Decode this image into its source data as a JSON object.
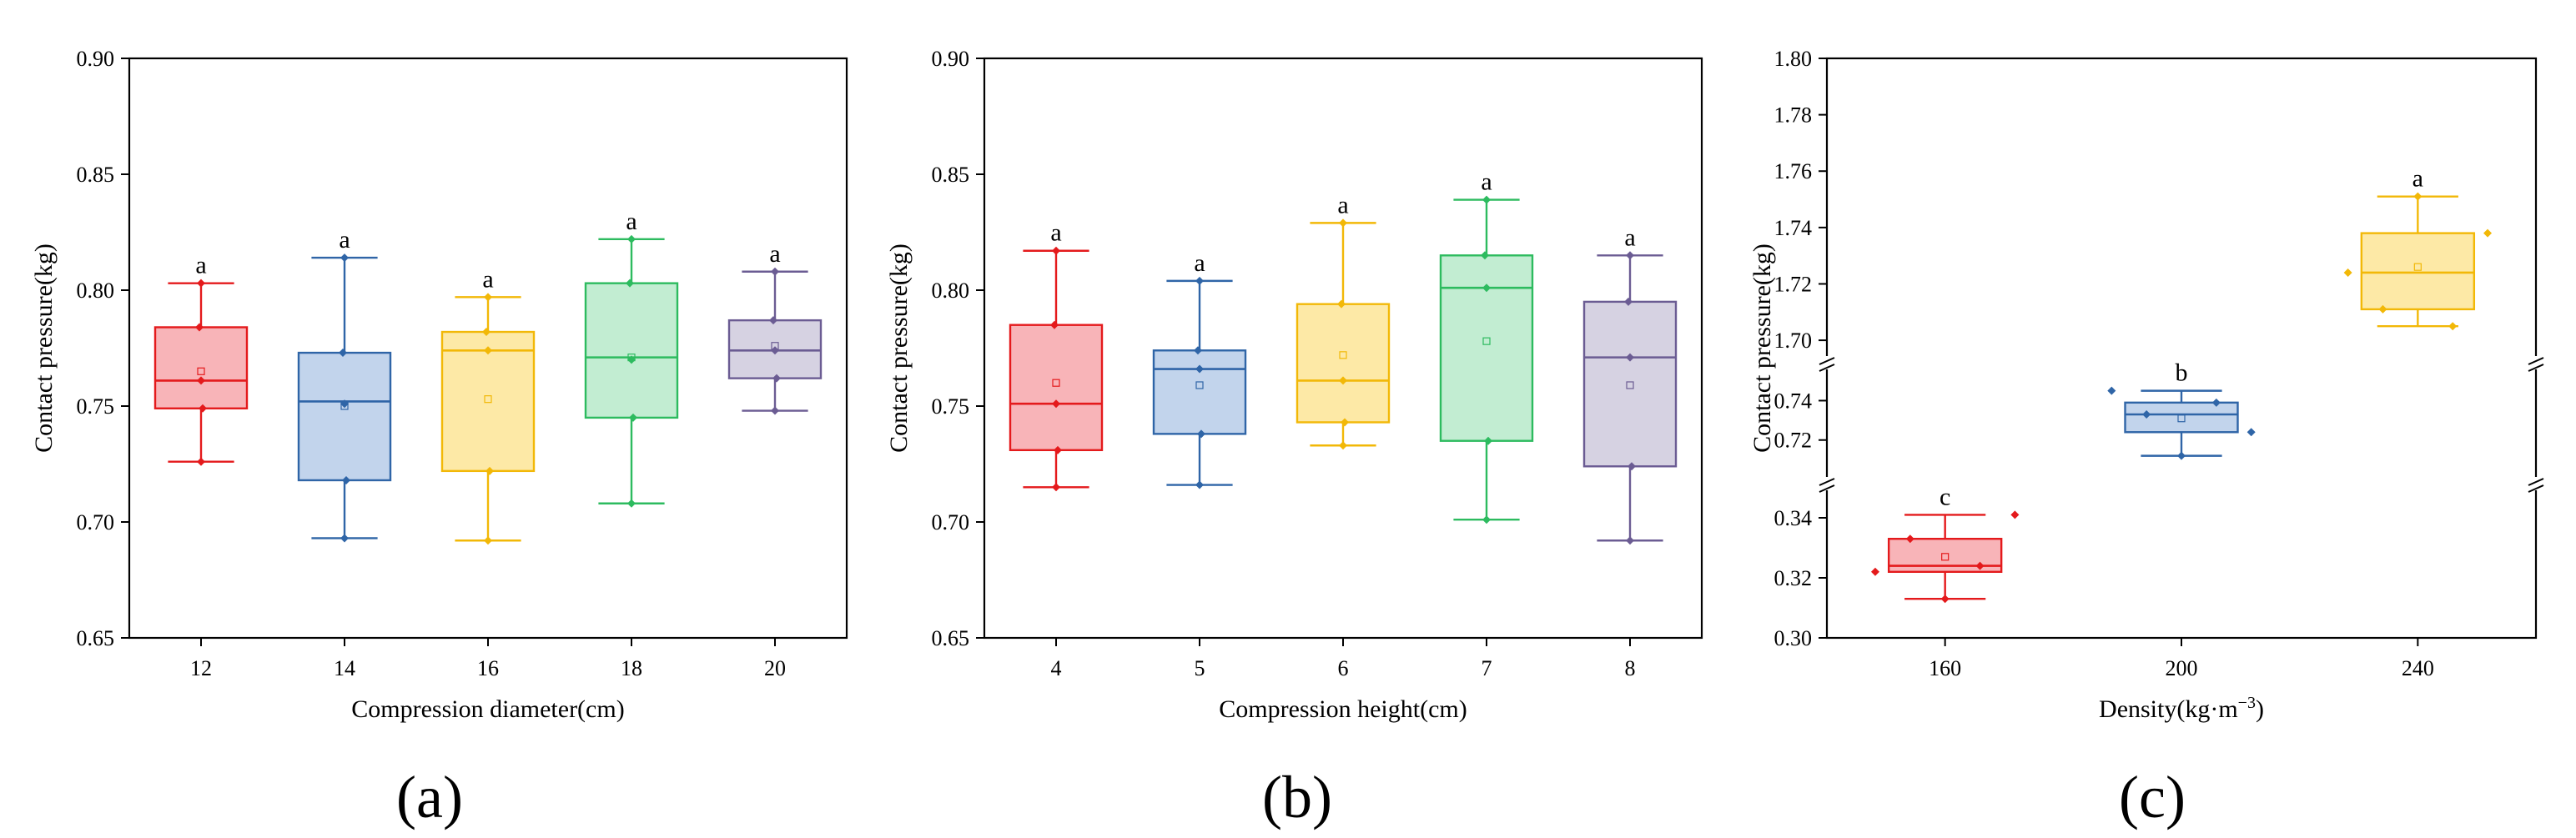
{
  "chart_data": [
    {
      "type": "box",
      "panel_label": "(a)",
      "xlabel": "Compression diameter(cm)",
      "ylabel": "Contact pressure(kg)",
      "ylim": [
        0.65,
        0.9
      ],
      "yticks": [
        "0.65",
        "0.70",
        "0.75",
        "0.80",
        "0.85",
        "0.90"
      ],
      "categories": [
        "12",
        "14",
        "16",
        "18",
        "20"
      ],
      "boxes": [
        {
          "q1": 0.749,
          "median": 0.761,
          "q3": 0.784,
          "whisker_low": 0.726,
          "whisker_high": 0.803,
          "mean": 0.765,
          "points": [
            0.726,
            0.749,
            0.761,
            0.784,
            0.803
          ],
          "letter": "a",
          "color": "#e41a1c",
          "fill": "#f8b4b8"
        },
        {
          "q1": 0.718,
          "median": 0.752,
          "q3": 0.773,
          "whisker_low": 0.693,
          "whisker_high": 0.814,
          "mean": 0.75,
          "points": [
            0.693,
            0.718,
            0.751,
            0.773,
            0.814
          ],
          "letter": "a",
          "color": "#2f65a7",
          "fill": "#c2d4ec"
        },
        {
          "q1": 0.722,
          "median": 0.774,
          "q3": 0.782,
          "whisker_low": 0.692,
          "whisker_high": 0.797,
          "mean": 0.753,
          "points": [
            0.692,
            0.722,
            0.774,
            0.782,
            0.797
          ],
          "letter": "a",
          "color": "#f2b807",
          "fill": "#fde9a6"
        },
        {
          "q1": 0.745,
          "median": 0.771,
          "q3": 0.803,
          "whisker_low": 0.708,
          "whisker_high": 0.822,
          "mean": 0.771,
          "points": [
            0.708,
            0.745,
            0.77,
            0.803,
            0.822
          ],
          "letter": "a",
          "color": "#2dbb5f",
          "fill": "#c2edd2"
        },
        {
          "q1": 0.762,
          "median": 0.774,
          "q3": 0.787,
          "whisker_low": 0.748,
          "whisker_high": 0.808,
          "mean": 0.776,
          "points": [
            0.748,
            0.762,
            0.774,
            0.787,
            0.808
          ],
          "letter": "a",
          "color": "#6b5c93",
          "fill": "#d6d2e2"
        }
      ]
    },
    {
      "type": "box",
      "panel_label": "(b)",
      "xlabel": "Compression height(cm)",
      "ylabel": "Contact pressure(kg)",
      "ylim": [
        0.65,
        0.9
      ],
      "yticks": [
        "0.65",
        "0.70",
        "0.75",
        "0.80",
        "0.85",
        "0.90"
      ],
      "categories": [
        "4",
        "5",
        "6",
        "7",
        "8"
      ],
      "boxes": [
        {
          "q1": 0.731,
          "median": 0.751,
          "q3": 0.785,
          "whisker_low": 0.715,
          "whisker_high": 0.817,
          "mean": 0.76,
          "points": [
            0.715,
            0.731,
            0.751,
            0.785,
            0.817
          ],
          "letter": "a",
          "color": "#e41a1c",
          "fill": "#f8b4b8"
        },
        {
          "q1": 0.738,
          "median": 0.766,
          "q3": 0.774,
          "whisker_low": 0.716,
          "whisker_high": 0.804,
          "mean": 0.759,
          "points": [
            0.716,
            0.738,
            0.766,
            0.774,
            0.804
          ],
          "letter": "a",
          "color": "#2f65a7",
          "fill": "#c2d4ec"
        },
        {
          "q1": 0.743,
          "median": 0.761,
          "q3": 0.794,
          "whisker_low": 0.733,
          "whisker_high": 0.829,
          "mean": 0.772,
          "points": [
            0.733,
            0.743,
            0.761,
            0.794,
            0.829
          ],
          "letter": "a",
          "color": "#f2b807",
          "fill": "#fde9a6"
        },
        {
          "q1": 0.735,
          "median": 0.801,
          "q3": 0.815,
          "whisker_low": 0.701,
          "whisker_high": 0.839,
          "mean": 0.778,
          "points": [
            0.701,
            0.735,
            0.801,
            0.815,
            0.839
          ],
          "letter": "a",
          "color": "#2dbb5f",
          "fill": "#c2edd2"
        },
        {
          "q1": 0.724,
          "median": 0.771,
          "q3": 0.795,
          "whisker_low": 0.692,
          "whisker_high": 0.815,
          "mean": 0.759,
          "points": [
            0.692,
            0.724,
            0.771,
            0.795,
            0.815
          ],
          "letter": "a",
          "color": "#6b5c93",
          "fill": "#d6d2e2"
        }
      ]
    },
    {
      "type": "box",
      "panel_label": "(c)",
      "xlabel": "Density(kg·m",
      "xlabel_sup": "−3",
      "xlabel_end": ")",
      "ylabel": "Contact pressure(kg)",
      "broken_axis": true,
      "segments": [
        {
          "range": [
            0.3,
            0.35
          ],
          "ticks": [
            "0.30",
            "0.32",
            "0.34"
          ]
        },
        {
          "range": [
            0.7,
            0.755
          ],
          "ticks": [
            "0.72",
            "0.74"
          ]
        },
        {
          "range": [
            1.695,
            1.8
          ],
          "ticks": [
            "1.70",
            "1.72",
            "1.74",
            "1.76",
            "1.78",
            "1.80"
          ]
        }
      ],
      "categories": [
        "160",
        "200",
        "240"
      ],
      "boxes": [
        {
          "q1": 0.322,
          "median": 0.324,
          "q3": 0.333,
          "whisker_low": 0.313,
          "whisker_high": 0.341,
          "mean": 0.327,
          "points": [
            0.322,
            0.333,
            0.313,
            0.324,
            0.341
          ],
          "letter": "c",
          "color": "#e41a1c",
          "fill": "#f8b4b8"
        },
        {
          "q1": 0.724,
          "median": 0.733,
          "q3": 0.739,
          "whisker_low": 0.712,
          "whisker_high": 0.745,
          "mean": 0.731,
          "points": [
            0.745,
            0.733,
            0.712,
            0.739,
            0.724
          ],
          "letter": "b",
          "color": "#2f65a7",
          "fill": "#c2d4ec"
        },
        {
          "q1": 1.711,
          "median": 1.724,
          "q3": 1.738,
          "whisker_low": 1.705,
          "whisker_high": 1.751,
          "mean": 1.726,
          "points": [
            1.724,
            1.711,
            1.751,
            1.705,
            1.738
          ],
          "letter": "a",
          "color": "#f2b807",
          "fill": "#fde9a6"
        }
      ]
    }
  ]
}
